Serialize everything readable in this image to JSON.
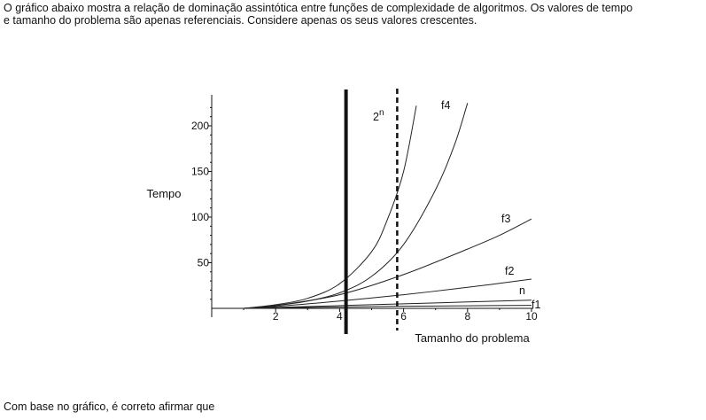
{
  "question": {
    "intro_line1": "O gráfico abaixo mostra a relação de dominação assintótica entre funções de complexidade de algoritmos. Os valores de tempo",
    "intro_line2": "e tamanho do problema são apenas referenciais. Considere apenas os seus valores crescentes.",
    "footer": "Com base no gráfico, é correto afirmar que"
  },
  "chart_data": {
    "type": "line",
    "xlabel": "Tamanho do problema",
    "ylabel": "Tempo",
    "xlim": [
      0,
      10
    ],
    "ylim": [
      0,
      230
    ],
    "x_ticks": [
      2,
      4,
      6,
      8,
      10
    ],
    "y_ticks": [
      50,
      100,
      150,
      200
    ],
    "grid": false,
    "series": [
      {
        "name": "2",
        "name_superscript": "n",
        "points": [
          [
            1,
            0
          ],
          [
            2,
            4
          ],
          [
            3,
            11
          ],
          [
            4,
            27
          ],
          [
            5,
            62
          ],
          [
            5.5,
            98
          ],
          [
            6,
            150
          ],
          [
            6.4,
            222
          ]
        ]
      },
      {
        "name": "f4",
        "points": [
          [
            1,
            0
          ],
          [
            2,
            3
          ],
          [
            3,
            8
          ],
          [
            4,
            17
          ],
          [
            5,
            35
          ],
          [
            6,
            70
          ],
          [
            7,
            130
          ],
          [
            7.6,
            180
          ],
          [
            8,
            225
          ]
        ]
      },
      {
        "name": "f3",
        "points": [
          [
            1,
            0
          ],
          [
            2,
            3
          ],
          [
            4,
            15
          ],
          [
            6,
            37
          ],
          [
            8,
            65
          ],
          [
            9,
            80
          ],
          [
            10,
            98
          ]
        ]
      },
      {
        "name": "f2",
        "points": [
          [
            1,
            0
          ],
          [
            2,
            2
          ],
          [
            4,
            8
          ],
          [
            6,
            15
          ],
          [
            8,
            23
          ],
          [
            10,
            32
          ]
        ]
      },
      {
        "name": "n",
        "points": [
          [
            1,
            0
          ],
          [
            4,
            3
          ],
          [
            6,
            5
          ],
          [
            8,
            7
          ],
          [
            10,
            9
          ]
        ]
      },
      {
        "name": "f1",
        "points": [
          [
            1,
            0
          ],
          [
            4,
            1.5
          ],
          [
            6,
            2.3
          ],
          [
            8,
            2.8
          ],
          [
            10,
            3.3
          ]
        ]
      }
    ],
    "vertical_lines": [
      {
        "x": 4.2,
        "style": "solid-thick"
      },
      {
        "x": 5.8,
        "style": "dashed"
      }
    ]
  }
}
